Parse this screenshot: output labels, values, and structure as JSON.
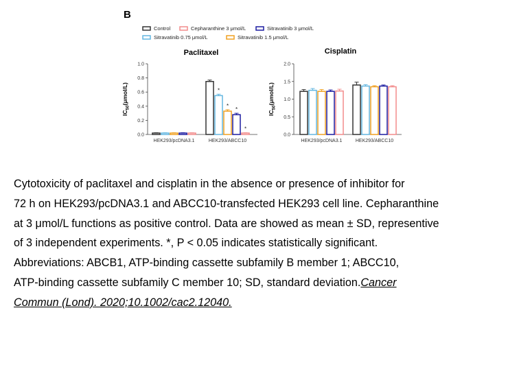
{
  "panel_label": "B",
  "legend": [
    {
      "name": "Control",
      "color": "#333333"
    },
    {
      "name": "Cepharanthine 3 μmol/L",
      "color": "#f28b8b"
    },
    {
      "name": "Sitravatinib 3 μmol/L",
      "color": "#1b1ba0"
    },
    {
      "name": "Sitravatinib 0.75 μmol/L",
      "color": "#62b6e0"
    },
    {
      "name": "Sitravatinib 1.5 μmol/L",
      "color": "#f0a020"
    }
  ],
  "chart_data": [
    {
      "type": "bar",
      "title": "Paclitaxel",
      "ylabel": "IC50(μmol/L)",
      "ylabel_main": "IC",
      "ylabel_sub": "50",
      "ylabel_unit": "(μmol/L)",
      "ylim": [
        0,
        1.0
      ],
      "yticks": [
        "0.0",
        "0.2",
        "0.4",
        "0.6",
        "0.8",
        "1.0"
      ],
      "categories": [
        "HEK293/pcDNA3.1",
        "HEK293/ABCC10"
      ],
      "series": [
        {
          "name": "Control",
          "values": [
            0.02,
            0.75
          ],
          "err": [
            0.005,
            0.02
          ],
          "sig": [
            "",
            ""
          ]
        },
        {
          "name": "Sitravatinib 0.75 μmol/L",
          "values": [
            0.02,
            0.55
          ],
          "err": [
            0.005,
            0.02
          ],
          "sig": [
            "",
            "*"
          ]
        },
        {
          "name": "Sitravatinib 1.5 μmol/L",
          "values": [
            0.02,
            0.33
          ],
          "err": [
            0.005,
            0.02
          ],
          "sig": [
            "",
            "*"
          ]
        },
        {
          "name": "Sitravatinib 3 μmol/L",
          "values": [
            0.02,
            0.28
          ],
          "err": [
            0.005,
            0.02
          ],
          "sig": [
            "",
            "*"
          ]
        },
        {
          "name": "Cepharanthine 3 μmol/L",
          "values": [
            0.02,
            0.02
          ],
          "err": [
            0.005,
            0.005
          ],
          "sig": [
            "",
            "*"
          ]
        }
      ]
    },
    {
      "type": "bar",
      "title": "Cisplatin",
      "ylabel": "IC50(μmol/L)",
      "ylabel_main": "IC",
      "ylabel_sub": "50",
      "ylabel_unit": "(μmol/L)",
      "ylim": [
        0,
        2.0
      ],
      "yticks": [
        "0.0",
        "0.5",
        "1.0",
        "1.5",
        "2.0"
      ],
      "categories": [
        "HEK293/pcDNA3.1",
        "HEK293/ABCC10"
      ],
      "series": [
        {
          "name": "Control",
          "values": [
            1.22,
            1.4
          ],
          "err": [
            0.05,
            0.08
          ],
          "sig": [
            "",
            ""
          ]
        },
        {
          "name": "Sitravatinib 0.75 μmol/L",
          "values": [
            1.25,
            1.37
          ],
          "err": [
            0.05,
            0.04
          ],
          "sig": [
            "",
            ""
          ]
        },
        {
          "name": "Sitravatinib 1.5 μmol/L",
          "values": [
            1.22,
            1.35
          ],
          "err": [
            0.05,
            0.03
          ],
          "sig": [
            "",
            ""
          ]
        },
        {
          "name": "Sitravatinib 3 μmol/L",
          "values": [
            1.22,
            1.37
          ],
          "err": [
            0.04,
            0.03
          ],
          "sig": [
            "",
            ""
          ]
        },
        {
          "name": "Cepharanthine 3 μmol/L",
          "values": [
            1.23,
            1.35
          ],
          "err": [
            0.05,
            0.03
          ],
          "sig": [
            "",
            ""
          ]
        }
      ]
    }
  ],
  "caption": {
    "lines": [
      "Cytotoxicity of paclitaxel and cisplatin in the absence or presence of inhibitor for",
      "72 h on HEK293/pcDNA3.1 and ABCC10-transfected HEK293 cell line. Cepharanthine",
      "at 3 μmol/L functions as positive control. Data are showed as mean ± SD, representive",
      "of 3 independent experiments. *, P < 0.05 indicates statistically significant.",
      "Abbreviations: ABCB1, ATP-binding cassette subfamily B member 1; ABCC10,"
    ],
    "last_line_text": "ATP-binding cassette subfamily C member 10; SD, standard deviation.",
    "citation_part1": "Cancer",
    "citation_part2": "Commun (Lond). 2020;10.1002/cac2.12040."
  }
}
